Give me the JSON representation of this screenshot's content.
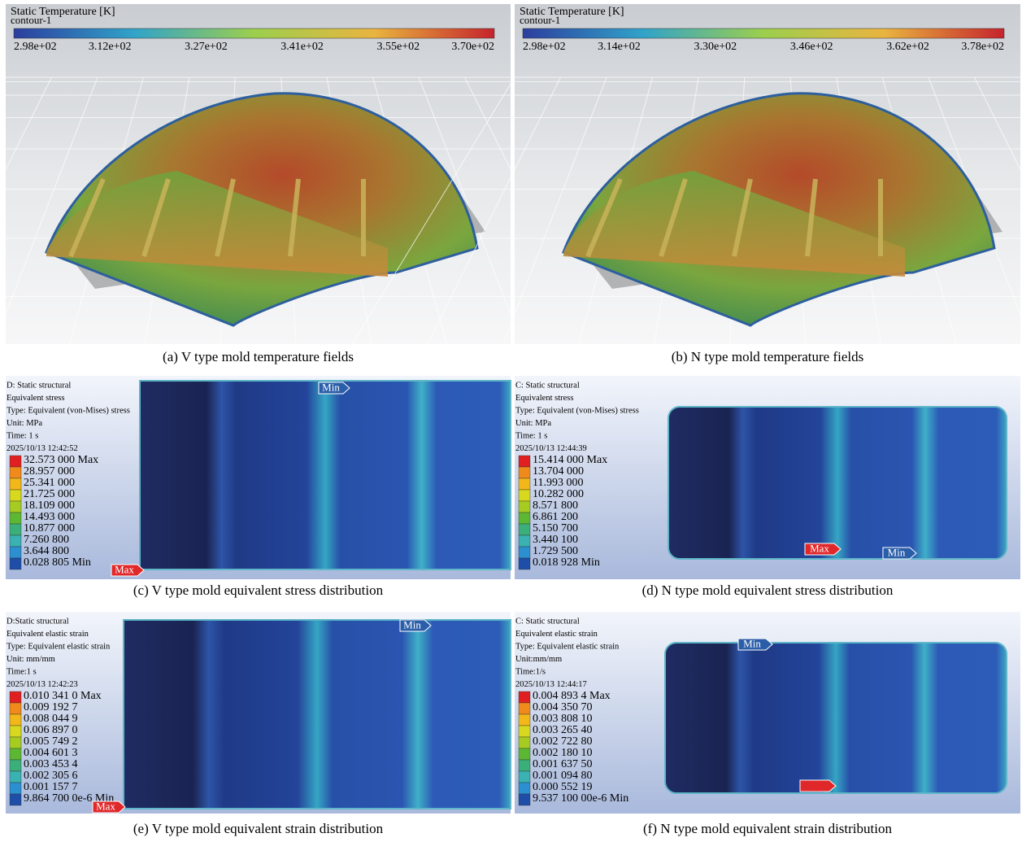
{
  "panels": [
    {
      "kind": "temperature",
      "legend_title": "Static Temperature [K]",
      "contour": "contour-1",
      "ticks": [
        "2.98e+02",
        "3.12e+02",
        "3.27e+02",
        "3.41e+02",
        "3.55e+02",
        "3.70e+02"
      ],
      "caption": "(a) V type mold temperature fields"
    },
    {
      "kind": "temperature",
      "legend_title": "Static Temperature [K]",
      "contour": "contour-1",
      "ticks": [
        "2.98e+02",
        "3.14e+02",
        "3.30e+02",
        "3.46e+02",
        "3.62e+02",
        "3.78e+02"
      ],
      "caption": "(b) N type mold temperature fields"
    },
    {
      "kind": "structural",
      "info": [
        "D: Static structural",
        "Equivalent stress",
        "Type: Equivalent (von-Mises) stress",
        "Unit: MPa",
        "Time: 1 s",
        "2025/10/13 12:42:52"
      ],
      "legend": [
        "32.573 000 Max",
        "28.957 000",
        "25.341 000",
        "21.725 000",
        "18.109 000",
        "14.493 000",
        "10.877 000",
        "7.260 800",
        "3.644 800",
        "0.028 805 Min"
      ],
      "max_tag": "Max",
      "min_tag": "Min",
      "caption": "(c) V type mold equivalent stress distribution"
    },
    {
      "kind": "structural",
      "info": [
        "C: Static structural",
        "Equivalent stress",
        "Type: Equivalent (von-Mises) stress",
        "Unit: MPa",
        "Time: 1 s",
        "2025/10/13 12:44:39"
      ],
      "legend": [
        "15.414 000 Max",
        "13.704 000",
        "11.993 000",
        "10.282 000",
        "8.571 800",
        "6.861 200",
        "5.150 700",
        "3.440 100",
        "1.729 500",
        "0.018 928 Min"
      ],
      "max_tag": "Max",
      "min_tag": "Min",
      "caption": "(d) N type mold equivalent stress distribution"
    },
    {
      "kind": "structural",
      "info": [
        "D:Static structural",
        "Equivalent elastic strain",
        "Type: Equivalent elastic strain",
        "Unit: mm/mm",
        "Time:1 s",
        "2025/10/13 12:42:23"
      ],
      "legend": [
        "0.010 341 0 Max",
        "0.009 192 7",
        "0.008 044 9",
        "0.006 897 0",
        "0.005 749 2",
        "0.004 601 3",
        "0.003 453 4",
        "0.002 305 6",
        "0.001 157 7",
        "9.864 700 0e-6 Min"
      ],
      "max_tag": "Max",
      "min_tag": "Min",
      "caption": "(e) V type mold equivalent strain distribution"
    },
    {
      "kind": "structural",
      "info": [
        "C: Static structural",
        "Equivalent elastic strain",
        "Type: Equivalent elastic strain",
        "Unit:mm/mm",
        "Time:1/s",
        "2025/10/13 12:44:17"
      ],
      "legend": [
        "0.004 893 4 Max",
        "0.004 350 70",
        "0.003 808 10",
        "0.003 265 40",
        "0.002 722 80",
        "0.002 180 10",
        "0.001 637 50",
        "0.001 094 80",
        "0.000 552 19",
        "9.537 100 00e-6 Min"
      ],
      "min_tag": "Min",
      "caption": "(f) N type mold equivalent strain distribution"
    }
  ]
}
